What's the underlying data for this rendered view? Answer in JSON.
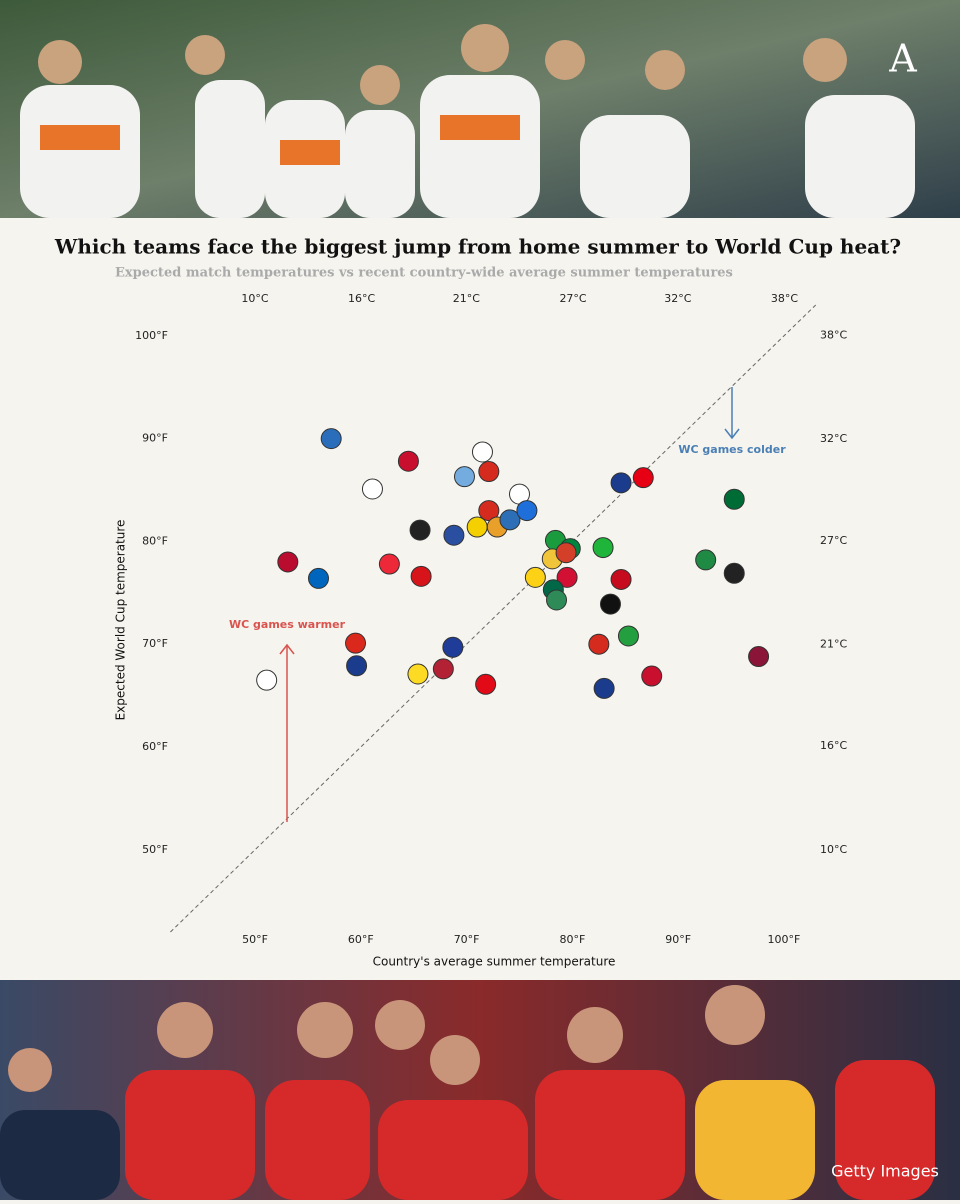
{
  "chart_data": {
    "type": "scatter",
    "title": "Which teams face the biggest jump from home summer to World Cup heat?",
    "subtitle": "Expected match temperatures vs recent country-wide average summer temperatures",
    "xlabel": "Country's average summer temperature",
    "ylabel": "Expected World Cup temperature",
    "annotations": [
      {
        "text": "WC games colder",
        "color": "#4a7fb5"
      },
      {
        "text": "WC games warmer",
        "color": "#d9534f"
      }
    ],
    "xlim": [
      42,
      103
    ],
    "ylim": [
      42,
      103
    ],
    "xticks": [
      {
        "value": 50,
        "label": "50°F"
      },
      {
        "value": 60,
        "label": "60°F"
      },
      {
        "value": 70,
        "label": "70°F"
      },
      {
        "value": 80,
        "label": "80°F"
      },
      {
        "value": 90,
        "label": "90°F"
      },
      {
        "value": 100,
        "label": "100°F"
      }
    ],
    "yticks": [
      {
        "value": 50,
        "label": "50°F"
      },
      {
        "value": 60,
        "label": "60°F"
      },
      {
        "value": 70,
        "label": "70°F"
      },
      {
        "value": 80,
        "label": "80°F"
      },
      {
        "value": 90,
        "label": "90°F"
      },
      {
        "value": 100,
        "label": "100°F"
      }
    ],
    "x2lim": [
      5.56,
      39.44
    ],
    "x2ticks": [
      {
        "value": 10,
        "label": "10°C"
      },
      {
        "value": 15.6,
        "label": "16°C"
      },
      {
        "value": 21.1,
        "label": "21°C"
      },
      {
        "value": 26.7,
        "label": "27°C"
      },
      {
        "value": 32.2,
        "label": "32°C"
      },
      {
        "value": 37.8,
        "label": "38°C"
      }
    ],
    "y2lim": [
      5.56,
      39.44
    ],
    "y2ticks": [
      {
        "value": 10,
        "label": "10°C"
      },
      {
        "value": 15.6,
        "label": "16°C"
      },
      {
        "value": 21.1,
        "label": "21°C"
      },
      {
        "value": 26.7,
        "label": "27°C"
      },
      {
        "value": 32.2,
        "label": "32°C"
      },
      {
        "value": 37.8,
        "label": "38°C"
      }
    ],
    "x": [
      57.2,
      64.5,
      71.5,
      72.1,
      69.8,
      61.1,
      75.0,
      84.6,
      86.7,
      95.3,
      72.1,
      65.6,
      68.8,
      71.0,
      72.9,
      74.1,
      75.7,
      78.4,
      79.8,
      78.1,
      79.4,
      82.9,
      92.6,
      95.3,
      53.1,
      62.7,
      56.0,
      65.7,
      76.5,
      79.5,
      84.6,
      78.2,
      78.5,
      83.6,
      59.5,
      85.3,
      82.5,
      68.7,
      97.6,
      59.6,
      65.4,
      67.8,
      87.5,
      51.1,
      71.8,
      83.0
    ],
    "y": [
      90.0,
      87.8,
      88.7,
      86.8,
      86.3,
      85.1,
      84.6,
      85.7,
      86.2,
      84.1,
      83.0,
      81.1,
      80.6,
      81.4,
      81.4,
      82.1,
      83.0,
      80.1,
      79.3,
      78.3,
      78.9,
      79.4,
      78.2,
      76.9,
      78.0,
      77.8,
      76.4,
      76.6,
      76.5,
      76.5,
      76.3,
      75.3,
      74.3,
      73.9,
      70.1,
      70.8,
      70.0,
      69.7,
      68.8,
      67.9,
      67.1,
      67.6,
      66.9,
      66.5,
      66.1,
      65.7
    ],
    "colors": [
      "#2a6ebb",
      "#c8102e",
      "#ffffff",
      "#d52b1e",
      "#74acdf",
      "#ffffff",
      "#ffffff",
      "#1b3c8c",
      "#e70013",
      "#006c35",
      "#d52b1e",
      "#222222",
      "#2b4fa0",
      "#f5d000",
      "#e8a02a",
      "#2d6fb7",
      "#1e6fd9",
      "#1a9c3e",
      "#00853f",
      "#f0c53a",
      "#d43f2a",
      "#1eb53a",
      "#1f8a44",
      "#222222",
      "#ba0c2f",
      "#ed2939",
      "#0065bd",
      "#d7141a",
      "#fcd116",
      "#d21034",
      "#c60b1e",
      "#006847",
      "#2e8b57",
      "#111111",
      "#da291c",
      "#239f40",
      "#d52b1e",
      "#1f3c99",
      "#8a1538",
      "#1b3c8c",
      "#fdda24",
      "#b22234",
      "#c8102e",
      "#ffffff",
      "#e30a17",
      "#1b3c8c"
    ]
  },
  "photo_credit": "Getty Images"
}
